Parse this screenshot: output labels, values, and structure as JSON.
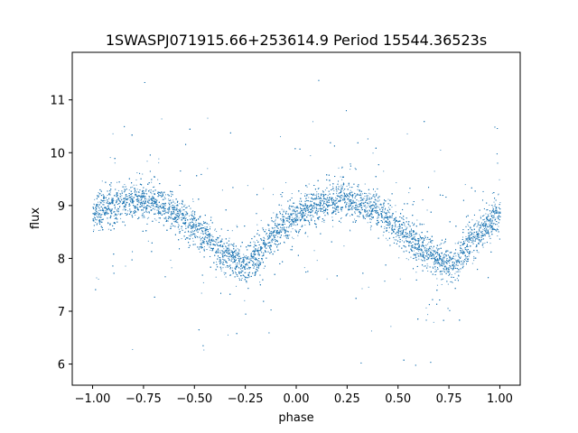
{
  "chart_data": {
    "type": "scatter",
    "title": "1SWASPJ071915.66+253614.9 Period 15544.36523s",
    "xlabel": "phase",
    "ylabel": "flux",
    "xlim": [
      -1.1,
      1.1
    ],
    "ylim": [
      5.6,
      11.9
    ],
    "x_ticks": [
      -1.0,
      -0.75,
      -0.5,
      -0.25,
      0.0,
      0.25,
      0.5,
      0.75,
      1.0
    ],
    "x_tick_labels": [
      "−1.00",
      "−0.75",
      "−0.50",
      "−0.25",
      "0.00",
      "0.25",
      "0.50",
      "0.75",
      "1.00"
    ],
    "y_ticks": [
      6,
      7,
      8,
      9,
      10,
      11
    ],
    "y_tick_labels": [
      "6",
      "7",
      "8",
      "9",
      "10",
      "11"
    ],
    "grid": false,
    "marker_color": "#1f77b4",
    "series": [
      {
        "x_range": [
          -1.0,
          1.0
        ],
        "trend": {
          "x": [
            -1.0,
            -0.9,
            -0.8,
            -0.75,
            -0.7,
            -0.6,
            -0.5,
            -0.4,
            -0.3,
            -0.25,
            -0.2,
            -0.1,
            0.0,
            0.1,
            0.2,
            0.25,
            0.3,
            0.4,
            0.5,
            0.6,
            0.7,
            0.75,
            0.8,
            0.9,
            1.0
          ],
          "y": [
            8.85,
            9.0,
            9.12,
            9.12,
            9.08,
            8.9,
            8.6,
            8.25,
            7.95,
            7.85,
            8.05,
            8.5,
            8.85,
            9.0,
            9.12,
            9.12,
            9.08,
            8.9,
            8.6,
            8.25,
            7.95,
            7.85,
            8.05,
            8.5,
            8.85
          ]
        },
        "scatter_sd": 0.17,
        "point_count": 12000
      }
    ]
  }
}
